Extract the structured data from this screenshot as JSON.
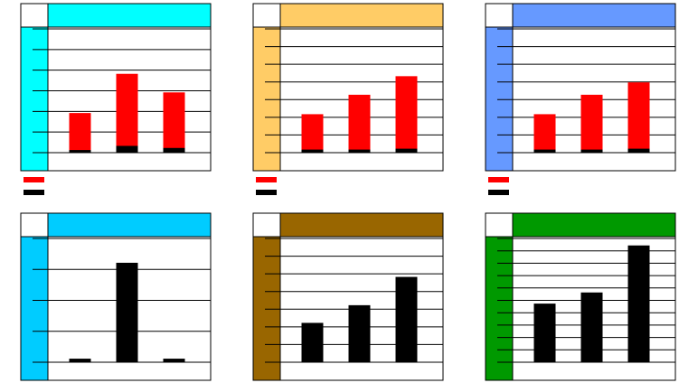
{
  "chart_data": [
    {
      "type": "bar",
      "stacked": true,
      "accent": "#00ffff",
      "categories": [
        "",
        "",
        ""
      ],
      "ylim": [
        0,
        6
      ],
      "gridlines": 6,
      "grid": true,
      "legend": "bottom-left",
      "series": [
        {
          "color": "#000000",
          "values": [
            0.15,
            0.35,
            0.25
          ]
        },
        {
          "color": "#ff0000",
          "values": [
            1.75,
            3.45,
            2.65
          ]
        }
      ]
    },
    {
      "type": "bar",
      "stacked": true,
      "accent": "#ffcc66",
      "categories": [
        "",
        "",
        ""
      ],
      "ylim": [
        0,
        7
      ],
      "gridlines": 7,
      "grid": true,
      "legend": "bottom-left",
      "series": [
        {
          "color": "#000000",
          "values": [
            0.2,
            0.2,
            0.25
          ]
        },
        {
          "color": "#ff0000",
          "values": [
            1.95,
            3.05,
            4.05
          ]
        }
      ]
    },
    {
      "type": "bar",
      "stacked": true,
      "accent": "#6699ff",
      "categories": [
        "",
        "",
        ""
      ],
      "ylim": [
        0,
        7
      ],
      "gridlines": 7,
      "grid": true,
      "legend": "bottom-left",
      "series": [
        {
          "color": "#000000",
          "values": [
            0.2,
            0.2,
            0.25
          ]
        },
        {
          "color": "#ff0000",
          "values": [
            1.95,
            3.05,
            3.7
          ]
        }
      ]
    },
    {
      "type": "bar",
      "accent": "#00ccff",
      "categories": [
        "",
        "",
        ""
      ],
      "ylim": [
        0,
        4
      ],
      "gridlines": 4,
      "grid": true,
      "series": [
        {
          "color": "#000000",
          "values": [
            0.1,
            3.2,
            0.1
          ]
        }
      ]
    },
    {
      "type": "bar",
      "accent": "#996600",
      "categories": [
        "",
        "",
        ""
      ],
      "ylim": [
        0,
        7
      ],
      "gridlines": 7,
      "grid": true,
      "series": [
        {
          "color": "#000000",
          "values": [
            2.2,
            3.2,
            4.8
          ]
        }
      ]
    },
    {
      "type": "bar",
      "accent": "#009900",
      "categories": [
        "",
        "",
        ""
      ],
      "ylim": [
        0,
        10
      ],
      "gridlines": 10,
      "grid": true,
      "series": [
        {
          "color": "#000000",
          "values": [
            4.7,
            5.6,
            9.4
          ]
        }
      ]
    }
  ]
}
